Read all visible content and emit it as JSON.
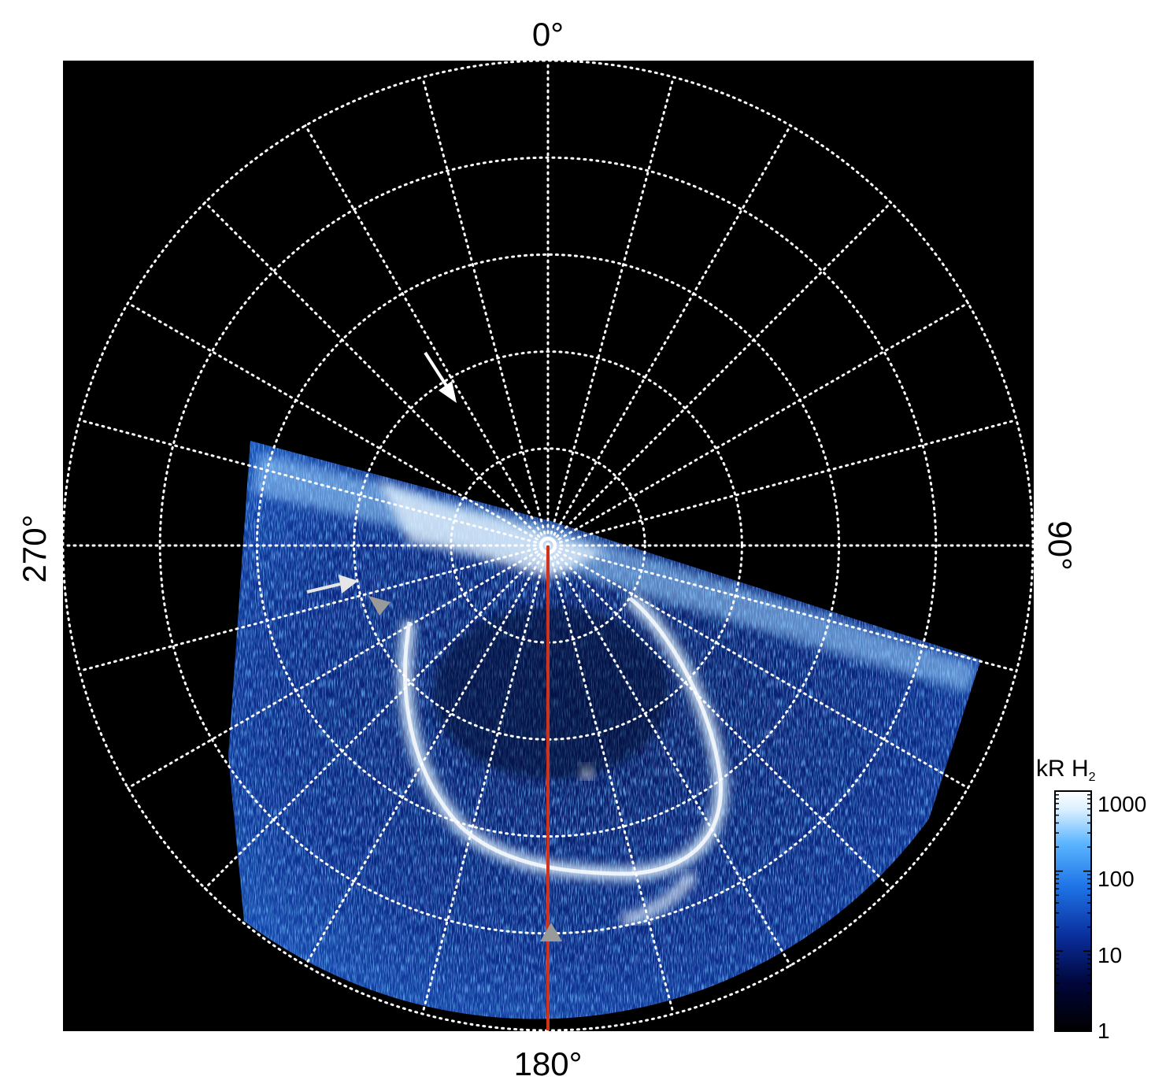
{
  "projection": {
    "type": "polar",
    "angular_labels": {
      "top": "0°",
      "right": "90°",
      "bottom": "180°",
      "left": "270°"
    },
    "radial_rings": 5,
    "meridians_every_deg": 15,
    "grid_style": "dotted white"
  },
  "colorbar": {
    "title_main": "kR H",
    "title_sub": "2",
    "scale": "log",
    "range": [
      1,
      1000
    ],
    "tick_labels": [
      "1000",
      "100",
      "10",
      "1"
    ],
    "colors": [
      "#000000",
      "#00063a",
      "#0a2f9e",
      "#1e73e6",
      "#5ab4ff",
      "#d8efff",
      "#ffffff"
    ]
  },
  "annotations": {
    "line_color": "#d0321c",
    "arrow_white": "#ffffff",
    "arrow_light": "#e6e6e6",
    "marker_gray": "#9a9a9a"
  }
}
